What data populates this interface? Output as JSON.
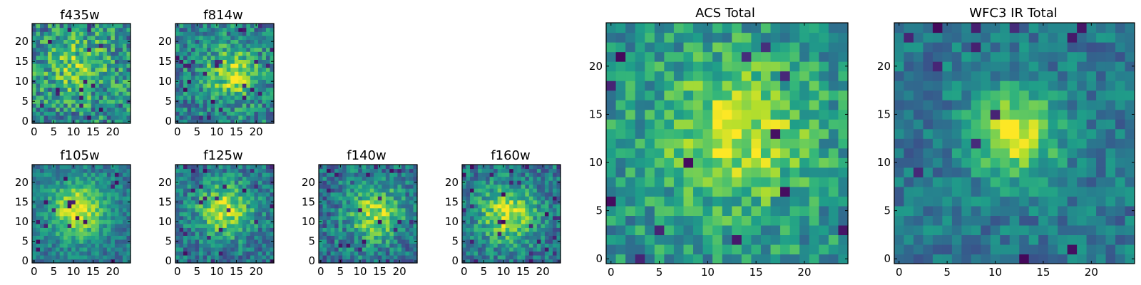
{
  "chart_data": [
    {
      "type": "heatmap",
      "title": "f435w",
      "xlim": [
        -0.5,
        24.5
      ],
      "ylim": [
        -0.5,
        24.5
      ],
      "xticks": [
        "0",
        "5",
        "10",
        "15",
        "20"
      ],
      "yticks": [
        "0",
        "5",
        "10",
        "15",
        "20"
      ],
      "grid": false,
      "seed": 11,
      "peak": {
        "x": 11,
        "y": 14
      },
      "sigma": 5.5,
      "amplitude": 0.28,
      "noise": 0.28,
      "base": 0.48,
      "outliers": 0.03
    },
    {
      "type": "heatmap",
      "title": "f814w",
      "xlim": [
        -0.5,
        24.5
      ],
      "ylim": [
        -0.5,
        24.5
      ],
      "xticks": [
        "0",
        "5",
        "10",
        "15",
        "20"
      ],
      "yticks": [
        "0",
        "5",
        "10",
        "15",
        "20"
      ],
      "grid": false,
      "seed": 23,
      "peak": {
        "x": 14,
        "y": 12
      },
      "sigma": 4.5,
      "amplitude": 0.42,
      "noise": 0.24,
      "base": 0.45,
      "outliers": 0.03
    },
    {
      "type": "heatmap",
      "title": "f105w",
      "xlim": [
        -0.5,
        24.5
      ],
      "ylim": [
        -0.5,
        24.5
      ],
      "xticks": [
        "0",
        "5",
        "10",
        "15",
        "20"
      ],
      "yticks": [
        "0",
        "5",
        "10",
        "15",
        "20"
      ],
      "grid": false,
      "seed": 37,
      "peak": {
        "x": 11,
        "y": 13
      },
      "sigma": 5.0,
      "amplitude": 0.55,
      "noise": 0.16,
      "base": 0.4,
      "outliers": 0.03
    },
    {
      "type": "heatmap",
      "title": "f125w",
      "xlim": [
        -0.5,
        24.5
      ],
      "ylim": [
        -0.5,
        24.5
      ],
      "xticks": [
        "0",
        "5",
        "10",
        "15",
        "20"
      ],
      "yticks": [
        "0",
        "5",
        "10",
        "15",
        "20"
      ],
      "grid": false,
      "seed": 41,
      "peak": {
        "x": 12,
        "y": 13
      },
      "sigma": 5.0,
      "amplitude": 0.5,
      "noise": 0.2,
      "base": 0.38,
      "outliers": 0.05
    },
    {
      "type": "heatmap",
      "title": "f140w",
      "xlim": [
        -0.5,
        24.5
      ],
      "ylim": [
        -0.5,
        24.5
      ],
      "xticks": [
        "0",
        "5",
        "10",
        "15",
        "20"
      ],
      "yticks": [
        "0",
        "5",
        "10",
        "15",
        "20"
      ],
      "grid": false,
      "seed": 53,
      "peak": {
        "x": 14,
        "y": 12
      },
      "sigma": 5.0,
      "amplitude": 0.48,
      "noise": 0.22,
      "base": 0.38,
      "outliers": 0.04
    },
    {
      "type": "heatmap",
      "title": "f160w",
      "xlim": [
        -0.5,
        24.5
      ],
      "ylim": [
        -0.5,
        24.5
      ],
      "xticks": [
        "0",
        "5",
        "10",
        "15",
        "20"
      ],
      "yticks": [
        "0",
        "5",
        "10",
        "15",
        "20"
      ],
      "grid": false,
      "seed": 67,
      "peak": {
        "x": 11,
        "y": 12
      },
      "sigma": 5.0,
      "amplitude": 0.52,
      "noise": 0.2,
      "base": 0.4,
      "outliers": 0.04
    },
    {
      "type": "heatmap",
      "title": "ACS Total",
      "xlim": [
        -0.5,
        24.5
      ],
      "ylim": [
        -0.5,
        24.5
      ],
      "xticks": [
        "0",
        "5",
        "10",
        "15",
        "20"
      ],
      "yticks": [
        "0",
        "5",
        "10",
        "15",
        "20"
      ],
      "grid": false,
      "seed": 79,
      "peak": {
        "x": 13,
        "y": 13
      },
      "sigma": 5.0,
      "amplitude": 0.4,
      "noise": 0.2,
      "base": 0.52,
      "outliers": 0.025
    },
    {
      "type": "heatmap",
      "title": "WFC3 IR Total",
      "xlim": [
        -0.5,
        24.5
      ],
      "ylim": [
        -0.5,
        24.5
      ],
      "xticks": [
        "0",
        "5",
        "10",
        "15",
        "20"
      ],
      "yticks": [
        "0",
        "5",
        "10",
        "15",
        "20"
      ],
      "grid": false,
      "seed": 97,
      "peak": {
        "x": 12,
        "y": 13
      },
      "sigma": 3.2,
      "amplitude": 0.55,
      "noise": 0.15,
      "base": 0.4,
      "outliers": 0.03
    }
  ]
}
